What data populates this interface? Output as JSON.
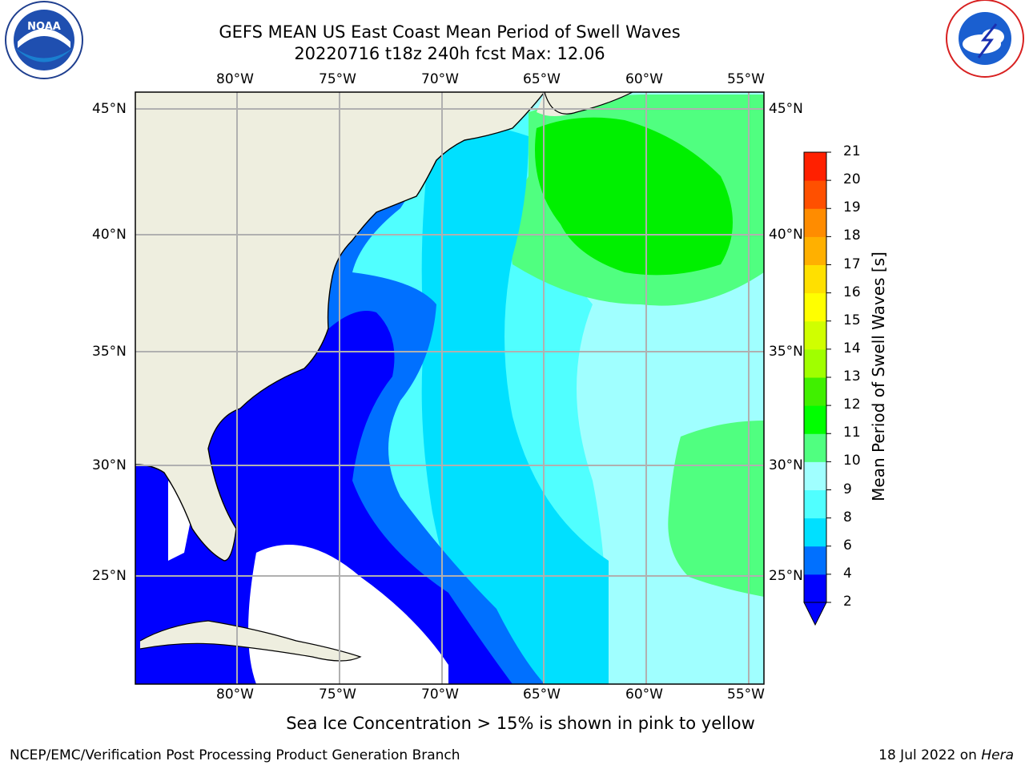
{
  "title": {
    "line1": "GEFS MEAN US East Coast Mean Period of Swell Waves",
    "line2": "20220716 t18z 240h fcst   Max: 12.06"
  },
  "axes": {
    "lon_labels": [
      "80°W",
      "75°W",
      "70°W",
      "65°W",
      "60°W",
      "55°W"
    ],
    "lat_labels": [
      "45°N",
      "40°N",
      "35°N",
      "30°N",
      "25°N"
    ]
  },
  "colorbar": {
    "title": "Mean Period of Swell Waves [s]",
    "ticks": [
      "2",
      "4",
      "6",
      "8",
      "9",
      "10",
      "11",
      "12",
      "13",
      "14",
      "15",
      "16",
      "17",
      "18",
      "19",
      "20",
      "21"
    ],
    "colors": [
      "#0000ff",
      "#0070ff",
      "#00e0ff",
      "#50ffff",
      "#a0ffff",
      "#50ff80",
      "#00ff00",
      "#40f000",
      "#a0ff00",
      "#d0ff00",
      "#ffff00",
      "#ffe000",
      "#ffb000",
      "#ff8c00",
      "#ff5000",
      "#ff2000",
      "#ff0000"
    ],
    "extend_color": "#0000ff"
  },
  "note": "Sea Ice Concentration > 15% is shown in pink to yellow",
  "footer": {
    "left": "NCEP/EMC/Verification Post Processing Product Generation Branch",
    "right_date": "18 Jul 2022 on ",
    "right_host": "Hera"
  },
  "logos": {
    "left": "noaa-logo",
    "right": "national-weather-service-logo"
  },
  "legend_colors": {
    "land": "#eeeedf",
    "coast": "#000000",
    "grid": "#b0b0b0"
  }
}
